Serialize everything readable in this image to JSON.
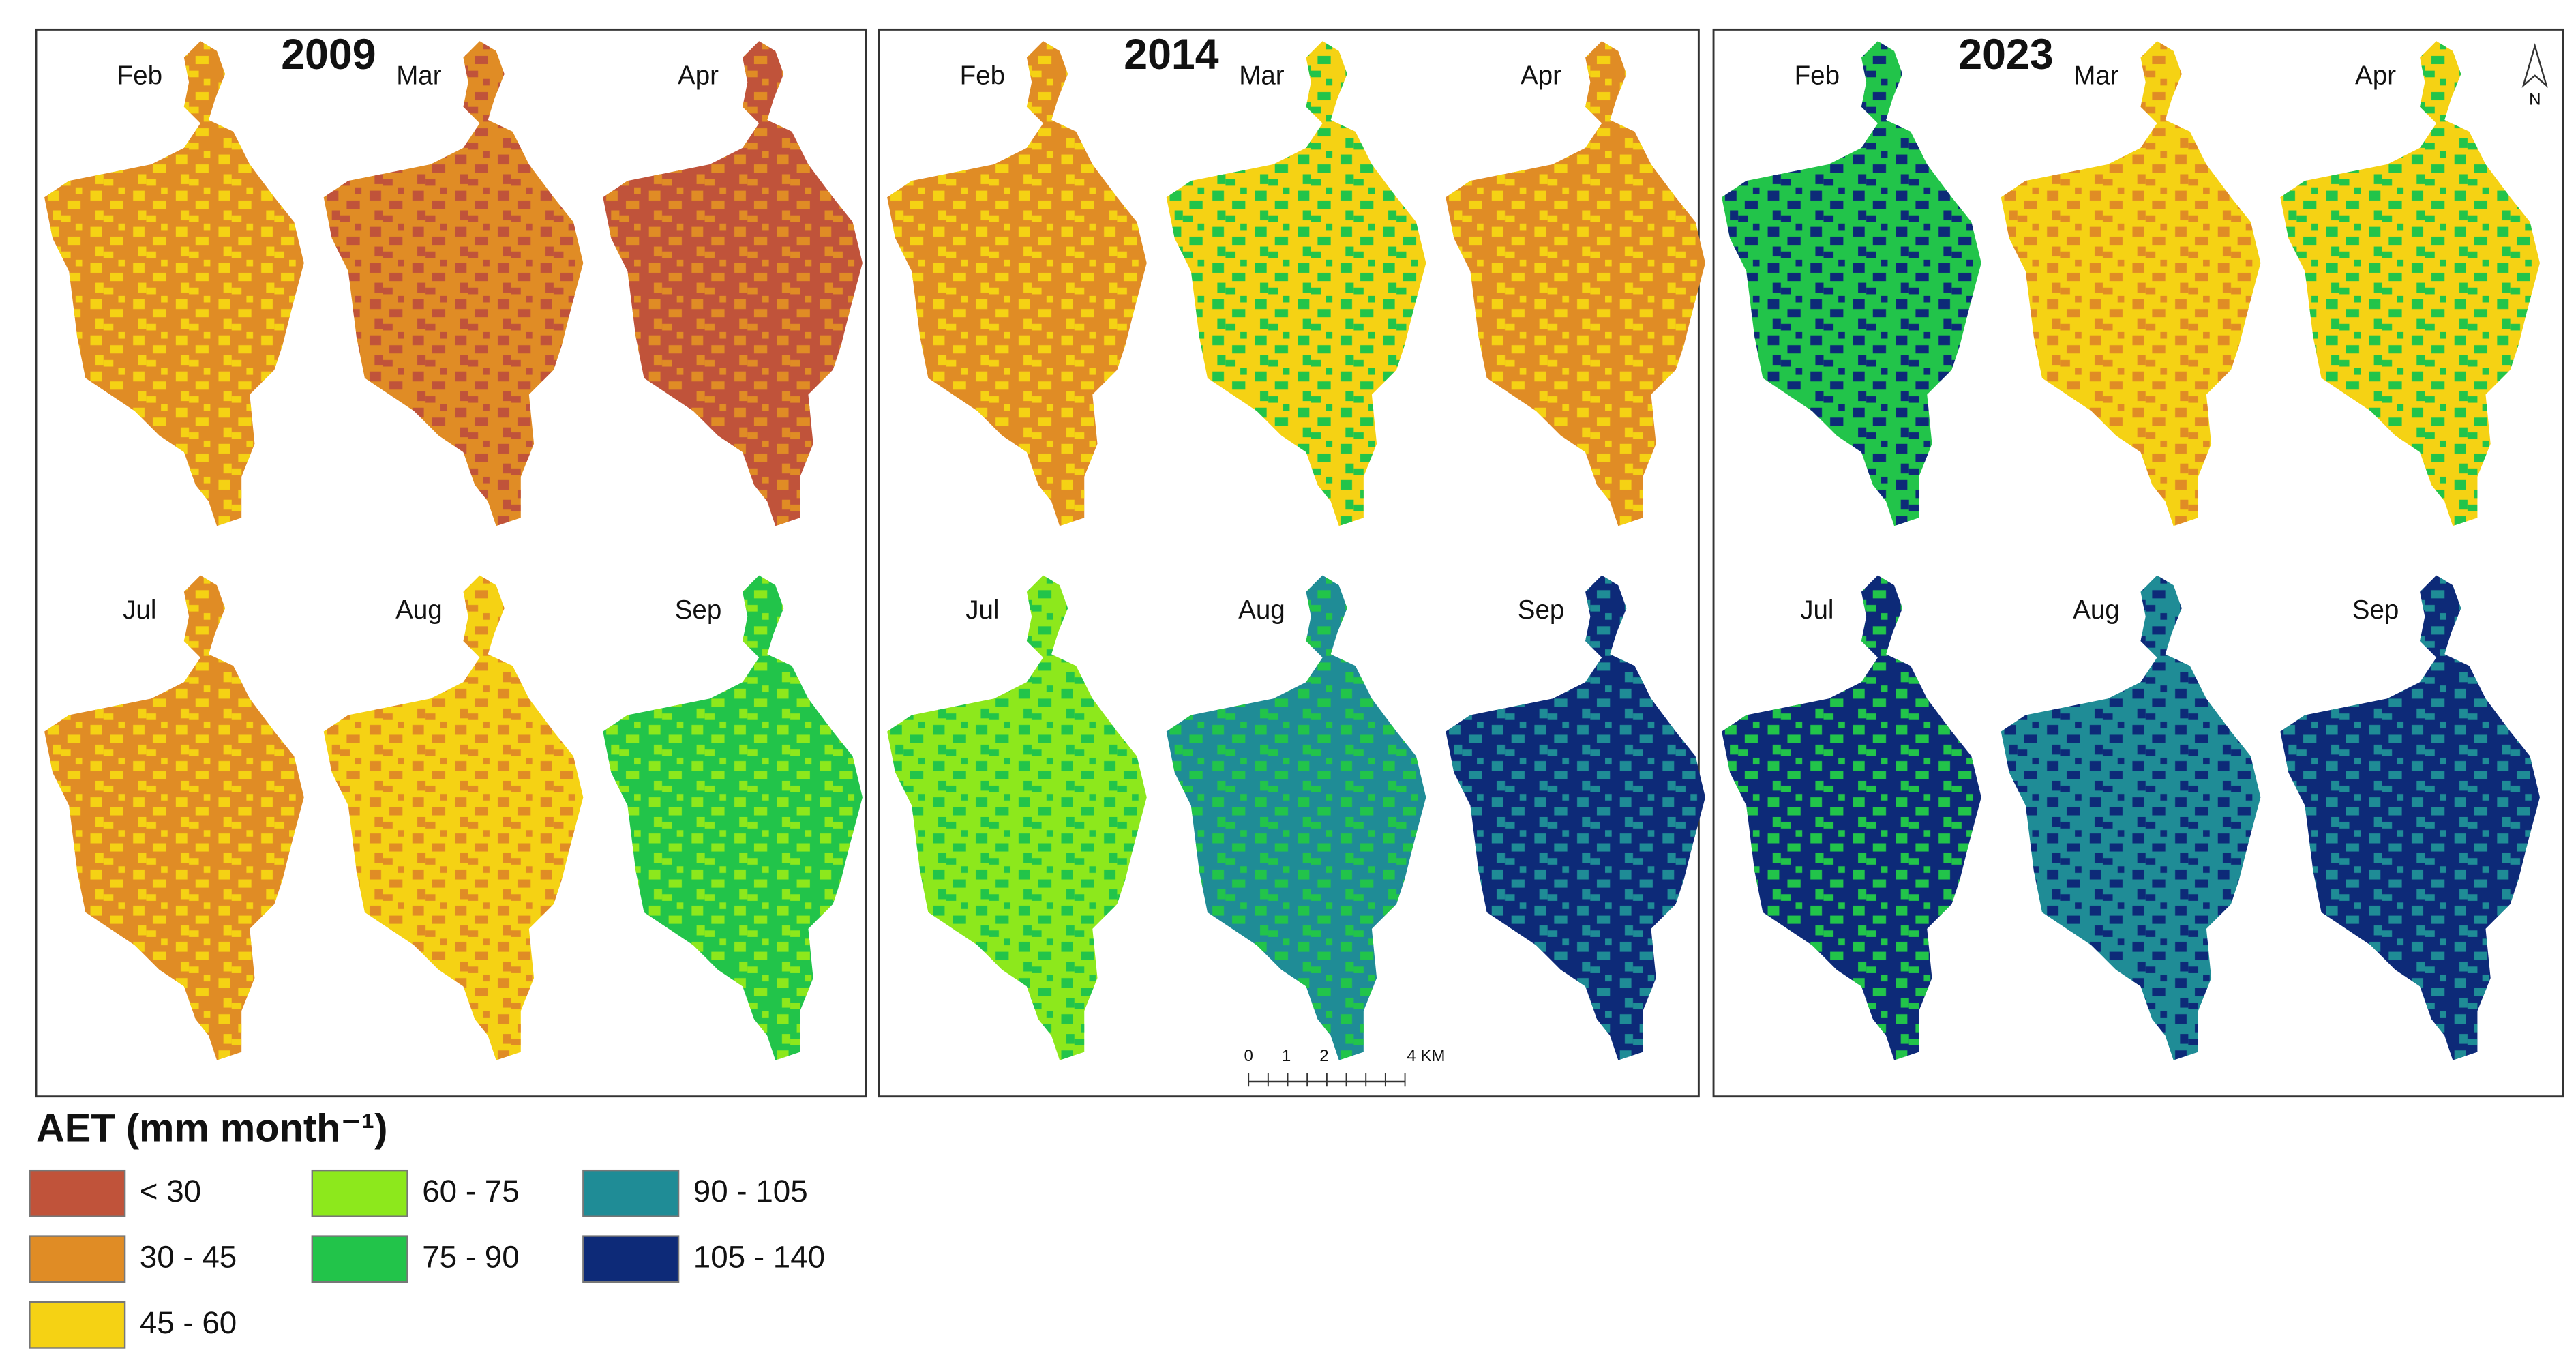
{
  "panels": [
    {
      "year": "2009",
      "months": [
        "Feb",
        "Mar",
        "Apr",
        "Jul",
        "Aug",
        "Sep"
      ]
    },
    {
      "year": "2014",
      "months": [
        "Feb",
        "Mar",
        "Apr",
        "Jul",
        "Aug",
        "Sep"
      ]
    },
    {
      "year": "2023",
      "months": [
        "Feb",
        "Mar",
        "Apr",
        "Jul",
        "Aug",
        "Sep"
      ]
    }
  ],
  "legend": {
    "title": "AET (mm month⁻¹)",
    "items": [
      {
        "label": "< 30",
        "color": "#c0533a"
      },
      {
        "label": "30 - 45",
        "color": "#e08c25"
      },
      {
        "label": "45 - 60",
        "color": "#f5d214"
      },
      {
        "label": "60 - 75",
        "color": "#8de81c"
      },
      {
        "label": "75 - 90",
        "color": "#22c44a"
      },
      {
        "label": "90 - 105",
        "color": "#1f8c96"
      },
      {
        "label": "105 - 140",
        "color": "#0d2a78"
      }
    ]
  },
  "scale_bar": {
    "labels": [
      "0",
      "1",
      "2",
      "4 KM"
    ]
  },
  "north_arrow": "N"
}
